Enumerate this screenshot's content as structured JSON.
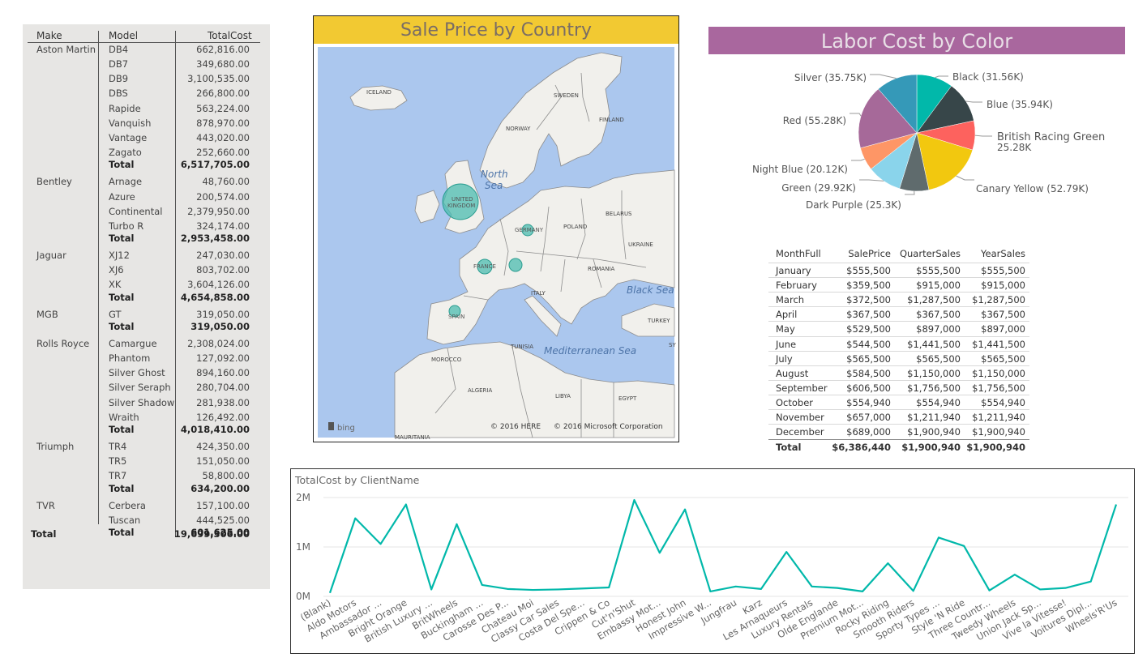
{
  "matrix": {
    "headers": {
      "make": "Make",
      "model": "Model",
      "total": "TotalCost"
    },
    "rows": [
      {
        "make": "Aston Martin",
        "model": "DB4",
        "value": "662,816.00",
        "bold": false
      },
      {
        "make": "",
        "model": "DB7",
        "value": "349,680.00",
        "bold": false
      },
      {
        "make": "",
        "model": "DB9",
        "value": "3,100,535.00",
        "bold": false
      },
      {
        "make": "",
        "model": "DBS",
        "value": "266,800.00",
        "bold": false
      },
      {
        "make": "",
        "model": "Rapide",
        "value": "563,224.00",
        "bold": false
      },
      {
        "make": "",
        "model": "Vanquish",
        "value": "878,970.00",
        "bold": false
      },
      {
        "make": "",
        "model": "Vantage",
        "value": "443,020.00",
        "bold": false
      },
      {
        "make": "",
        "model": "Zagato",
        "value": "252,660.00",
        "bold": false
      },
      {
        "make": "",
        "model": "Total",
        "value": "6,517,705.00",
        "bold": true
      },
      {
        "make": "Bentley",
        "model": "Arnage",
        "value": "48,760.00",
        "bold": false
      },
      {
        "make": "",
        "model": "Azure",
        "value": "200,574.00",
        "bold": false
      },
      {
        "make": "",
        "model": "Continental",
        "value": "2,379,950.00",
        "bold": false
      },
      {
        "make": "",
        "model": "Turbo R",
        "value": "324,174.00",
        "bold": false
      },
      {
        "make": "",
        "model": "Total",
        "value": "2,953,458.00",
        "bold": true
      },
      {
        "make": "Jaguar",
        "model": "XJ12",
        "value": "247,030.00",
        "bold": false
      },
      {
        "make": "",
        "model": "XJ6",
        "value": "803,702.00",
        "bold": false
      },
      {
        "make": "",
        "model": "XK",
        "value": "3,604,126.00",
        "bold": false
      },
      {
        "make": "",
        "model": "Total",
        "value": "4,654,858.00",
        "bold": true
      },
      {
        "make": "MGB",
        "model": "GT",
        "value": "319,050.00",
        "bold": false
      },
      {
        "make": "",
        "model": "Total",
        "value": "319,050.00",
        "bold": true
      },
      {
        "make": "Rolls Royce",
        "model": "Camargue",
        "value": "2,308,024.00",
        "bold": false
      },
      {
        "make": "",
        "model": "Phantom",
        "value": "127,092.00",
        "bold": false
      },
      {
        "make": "",
        "model": "Silver Ghost",
        "value": "894,160.00",
        "bold": false
      },
      {
        "make": "",
        "model": "Silver Seraph",
        "value": "280,704.00",
        "bold": false
      },
      {
        "make": "",
        "model": "Silver Shadow",
        "value": "281,938.00",
        "bold": false
      },
      {
        "make": "",
        "model": "Wraith",
        "value": "126,492.00",
        "bold": false
      },
      {
        "make": "",
        "model": "Total",
        "value": "4,018,410.00",
        "bold": true
      },
      {
        "make": "Triumph",
        "model": "TR4",
        "value": "424,350.00",
        "bold": false
      },
      {
        "make": "",
        "model": "TR5",
        "value": "151,050.00",
        "bold": false
      },
      {
        "make": "",
        "model": "TR7",
        "value": "58,800.00",
        "bold": false
      },
      {
        "make": "",
        "model": "Total",
        "value": "634,200.00",
        "bold": true
      },
      {
        "make": "TVR",
        "model": "Cerbera",
        "value": "157,100.00",
        "bold": false
      },
      {
        "make": "",
        "model": "Tuscan",
        "value": "444,525.00",
        "bold": false
      },
      {
        "make": "",
        "model": "Total",
        "value": "601,625.00",
        "bold": true
      }
    ],
    "grand_total": {
      "label": "Total",
      "value": "19,699,306.00"
    }
  },
  "map": {
    "title": "Sale Price by Country",
    "labels": {
      "iceland": "ICELAND",
      "sweden": "SWEDEN",
      "finland": "FINLAND",
      "norway": "NORWAY",
      "north_sea_1": "North",
      "north_sea_2": "Sea",
      "uk_1": "UNITED",
      "uk_2": "KINGDOM",
      "germany": "GERMANY",
      "poland": "POLAND",
      "belarus": "BELARUS",
      "ukraine": "UKRAINE",
      "france": "FRANCE",
      "romania": "ROMANIA",
      "italy": "ITALY",
      "black_sea": "Black Sea",
      "turkey": "TURKEY",
      "spain": "SPAIN",
      "tunisia": "TUNISIA",
      "med_sea": "Mediterranean Sea",
      "morocco": "MOROCCO",
      "algeria": "ALGERIA",
      "libya": "LIBYA",
      "egypt": "EGYPT",
      "sy": "SY",
      "mauritania": "MAURITANIA"
    },
    "bing": "bing",
    "credit_here": "© 2016 HERE",
    "credit_ms": "© 2016 Microsoft Corporation",
    "bubble_color": "#4bbcb0"
  },
  "chart_data": [
    {
      "type": "pie",
      "title": "Labor Cost by Color",
      "slices": [
        {
          "label": "Black",
          "display": "Black (31.56K)",
          "value": 31.56,
          "color": "#01b8aa"
        },
        {
          "label": "Blue",
          "display": "Blue (35.94K)",
          "value": 35.94,
          "color": "#374649"
        },
        {
          "label": "British Racing Green",
          "display": "British Racing Green",
          "display2": "25.28K",
          "value": 25.28,
          "color": "#fd625e"
        },
        {
          "label": "Canary Yellow",
          "display": "Canary Yellow (52.79K)",
          "value": 52.79,
          "color": "#f2c80f"
        },
        {
          "label": "Dark Purple",
          "display": "Dark Purple (25.3K)",
          "value": 25.3,
          "color": "#5f6b6d"
        },
        {
          "label": "Green",
          "display": "Green (29.92K)",
          "value": 29.92,
          "color": "#8ad4eb"
        },
        {
          "label": "Night Blue",
          "display": "Night Blue (20.12K)",
          "value": 20.12,
          "color": "#fe9666"
        },
        {
          "label": "Red",
          "display": "Red (55.28K)",
          "value": 55.28,
          "color": "#a66999"
        },
        {
          "label": "Silver",
          "display": "Silver (35.75K)",
          "value": 35.75,
          "color": "#3599b8"
        }
      ]
    },
    {
      "type": "table",
      "columns": [
        "MonthFull",
        "SalePrice",
        "QuarterSales",
        "YearSales"
      ],
      "rows": [
        [
          "January",
          "$555,500",
          "$555,500",
          "$555,500"
        ],
        [
          "February",
          "$359,500",
          "$915,000",
          "$915,000"
        ],
        [
          "March",
          "$372,500",
          "$1,287,500",
          "$1,287,500"
        ],
        [
          "April",
          "$367,500",
          "$367,500",
          "$367,500"
        ],
        [
          "May",
          "$529,500",
          "$897,000",
          "$897,000"
        ],
        [
          "June",
          "$544,500",
          "$1,441,500",
          "$1,441,500"
        ],
        [
          "July",
          "$565,500",
          "$565,500",
          "$565,500"
        ],
        [
          "August",
          "$584,500",
          "$1,150,000",
          "$1,150,000"
        ],
        [
          "September",
          "$606,500",
          "$1,756,500",
          "$1,756,500"
        ],
        [
          "October",
          "$554,940",
          "$554,940",
          "$554,940"
        ],
        [
          "November",
          "$657,000",
          "$1,211,940",
          "$1,211,940"
        ],
        [
          "December",
          "$689,000",
          "$1,900,940",
          "$1,900,940"
        ]
      ],
      "total": [
        "Total",
        "$6,386,440",
        "$1,900,940",
        "$1,900,940"
      ]
    },
    {
      "type": "line",
      "title": "TotalCost by ClientName",
      "yticks": [
        "0M",
        "1M",
        "2M"
      ],
      "ylim": [
        0,
        2000000
      ],
      "color": "#01b8aa",
      "categories": [
        "(Blank)",
        "Aldo Motors",
        "Ambassador ...",
        "Bright Orange",
        "British Luxury ...",
        "BritWheels",
        "Buckingham ...",
        "Carosse Des P...",
        "Chateau Moi",
        "Classy Car Sales",
        "Costa Del Spe...",
        "Crippen & Co",
        "Cut'n'Shut",
        "Embassy Mot...",
        "Honest John",
        "Impressive W...",
        "Jungfrau",
        "Karz",
        "Les Arnaqueurs",
        "Luxury Rentals",
        "Olde Englande",
        "Premium Mot...",
        "Rocky Riding",
        "Smooth Riders",
        "Sporty Types ...",
        "Style 'N Ride",
        "Three Countr...",
        "Tweedy Wheels",
        "Union Jack Sp...",
        "Vive la Vitesse!",
        "Voitures Dipl...",
        "Wheels'R'Us"
      ],
      "values": [
        70000,
        1580000,
        1060000,
        1860000,
        140000,
        1460000,
        230000,
        150000,
        130000,
        140000,
        160000,
        180000,
        1950000,
        880000,
        1760000,
        100000,
        200000,
        150000,
        900000,
        200000,
        170000,
        100000,
        670000,
        110000,
        1190000,
        1020000,
        120000,
        440000,
        140000,
        170000,
        300000,
        1860000
      ]
    }
  ]
}
